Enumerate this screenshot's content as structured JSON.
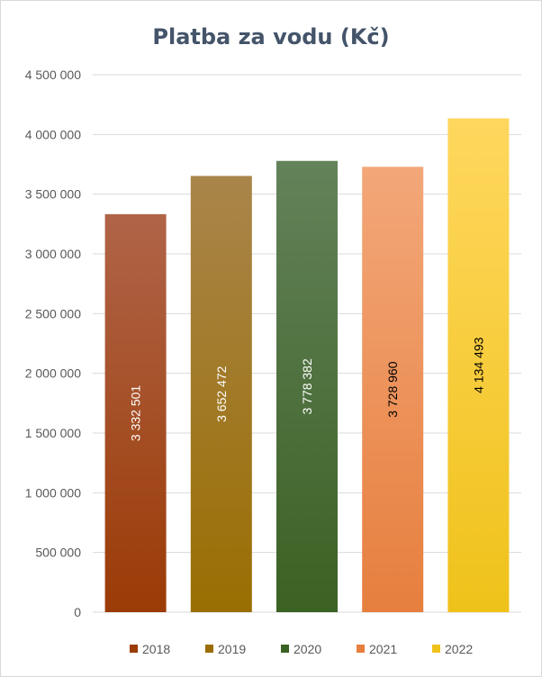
{
  "chart_data": {
    "type": "bar",
    "title": "Platba za vodu (Kč)",
    "xlabel": "",
    "ylabel": "",
    "ylim": [
      0,
      4500000
    ],
    "yticks": [
      0,
      500000,
      1000000,
      1500000,
      2000000,
      2500000,
      3000000,
      3500000,
      4000000,
      4500000
    ],
    "ytick_labels": [
      "0",
      "500 000",
      "1 000 000",
      "1 500 000",
      "2 000 000",
      "2 500 000",
      "3 000 000",
      "3 500 000",
      "4 000 000",
      "4 500 000"
    ],
    "grid": true,
    "legend_position": "bottom",
    "categories": [
      "2018",
      "2019",
      "2020",
      "2021",
      "2022"
    ],
    "values": [
      3332501,
      3652472,
      3778382,
      3728960,
      4134493
    ],
    "data_labels": [
      "3 332 501",
      "3 652 472",
      "3 778 382",
      "3 728 960",
      "4 134 493"
    ],
    "colors": [
      {
        "top": "#b06448",
        "bottom": "#9b3b06",
        "label": "#ffffff"
      },
      {
        "top": "#a9854a",
        "bottom": "#9a6e02",
        "label": "#ffffff"
      },
      {
        "top": "#63825a",
        "bottom": "#3b6123",
        "label": "#ffffff"
      },
      {
        "top": "#f3a779",
        "bottom": "#e67f3e",
        "label": "#000000"
      },
      {
        "top": "#ffd75e",
        "bottom": "#efc21a",
        "label": "#000000"
      }
    ],
    "grid_color": "#d9d9d9",
    "title_color": "#44546a"
  }
}
